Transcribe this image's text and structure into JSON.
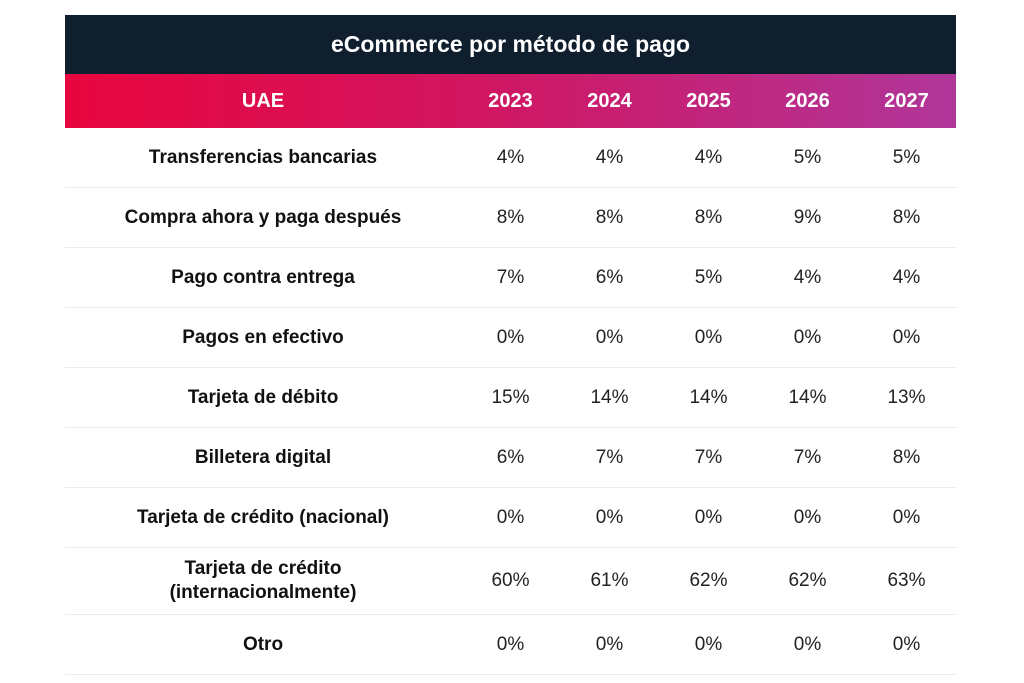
{
  "title": "eCommerce por método de pago",
  "header": {
    "region": "UAE",
    "years": [
      "2023",
      "2024",
      "2025",
      "2026",
      "2027"
    ]
  },
  "colors": {
    "title_bg": "#0f1f2e",
    "header_gradient_start": "#e8063f",
    "header_gradient_end": "#b0369a"
  },
  "rows": [
    {
      "label": "Transferencias bancarias",
      "values": [
        "4%",
        "4%",
        "4%",
        "5%",
        "5%"
      ]
    },
    {
      "label": "Compra ahora y paga después",
      "values": [
        "8%",
        "8%",
        "8%",
        "9%",
        "8%"
      ]
    },
    {
      "label": "Pago contra entrega",
      "values": [
        "7%",
        "6%",
        "5%",
        "4%",
        "4%"
      ]
    },
    {
      "label": "Pagos en efectivo",
      "values": [
        "0%",
        "0%",
        "0%",
        "0%",
        "0%"
      ]
    },
    {
      "label": "Tarjeta de débito",
      "values": [
        "15%",
        "14%",
        "14%",
        "14%",
        "13%"
      ]
    },
    {
      "label": "Billetera digital",
      "values": [
        "6%",
        "7%",
        "7%",
        "7%",
        "8%"
      ]
    },
    {
      "label": "Tarjeta de crédito (nacional)",
      "values": [
        "0%",
        "0%",
        "0%",
        "0%",
        "0%"
      ]
    },
    {
      "label": "Tarjeta de crédito (internacionalmente)",
      "label_lines": [
        "Tarjeta de crédito",
        "(internacionalmente)"
      ],
      "values": [
        "60%",
        "61%",
        "62%",
        "62%",
        "63%"
      ]
    },
    {
      "label": "Otro",
      "values": [
        "0%",
        "0%",
        "0%",
        "0%",
        "0%"
      ]
    }
  ]
}
